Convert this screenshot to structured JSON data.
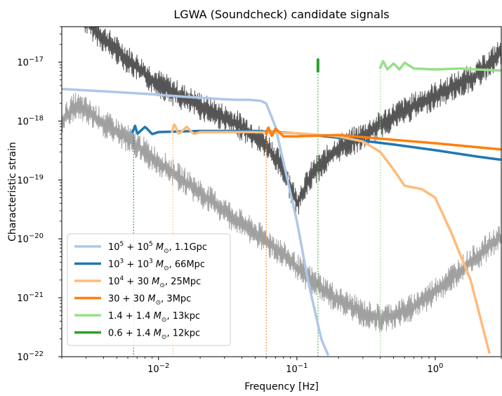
{
  "chart_data": {
    "type": "line",
    "title": "LGWA (Soundcheck) candidate signals",
    "xlabel": "Frequency [Hz]",
    "ylabel": "Characteristic strain",
    "xscale": "log",
    "yscale": "log",
    "xlim": [
      0.002,
      3.0
    ],
    "ylim": [
      1e-22,
      4e-17
    ],
    "grid": false,
    "legend_position": "lower-left",
    "x_ticks": [
      {
        "value": 0.01,
        "label": "10^-2"
      },
      {
        "value": 0.1,
        "label": "10^-1"
      },
      {
        "value": 1,
        "label": "10^0"
      }
    ],
    "y_ticks": [
      {
        "value": 1e-22,
        "label": "10^-22"
      },
      {
        "value": 1e-21,
        "label": "10^-21"
      },
      {
        "value": 1e-20,
        "label": "10^-20"
      },
      {
        "value": 1e-19,
        "label": "10^-19"
      },
      {
        "value": 1e-18,
        "label": "10^-18"
      },
      {
        "value": 1e-17,
        "label": "10^-17"
      }
    ],
    "noise_curves": [
      {
        "color": "#555555",
        "noisy": true,
        "points": [
          [
            0.0028,
            6e-17
          ],
          [
            0.004,
            2.5e-17
          ],
          [
            0.006,
            1.1e-17
          ],
          [
            0.009,
            5e-18
          ],
          [
            0.015,
            2.5e-18
          ],
          [
            0.025,
            1.4e-18
          ],
          [
            0.04,
            8e-19
          ],
          [
            0.06,
            4e-19
          ],
          [
            0.08,
            1.5e-19
          ],
          [
            0.1,
            4e-20
          ],
          [
            0.13,
            1.3e-19
          ],
          [
            0.2,
            3.5e-19
          ],
          [
            0.3,
            5.5e-19
          ],
          [
            0.5,
            1.2e-18
          ],
          [
            1,
            2.7e-18
          ],
          [
            2,
            6e-18
          ],
          [
            3,
            1.5e-17
          ]
        ]
      },
      {
        "color": "#a0a0a0",
        "noisy": true,
        "points": [
          [
            0.002,
            1e-18
          ],
          [
            0.0025,
            1.8e-18
          ],
          [
            0.003,
            1.5e-18
          ],
          [
            0.004,
            9e-19
          ],
          [
            0.006,
            5e-19
          ],
          [
            0.01,
            2e-19
          ],
          [
            0.02,
            6e-20
          ],
          [
            0.04,
            1.8e-20
          ],
          [
            0.07,
            7e-21
          ],
          [
            0.12,
            2.2e-21
          ],
          [
            0.2,
            9e-22
          ],
          [
            0.3,
            5.5e-22
          ],
          [
            0.4,
            4.5e-22
          ],
          [
            0.5,
            5e-22
          ],
          [
            0.7,
            7e-22
          ],
          [
            1,
            1.3e-21
          ],
          [
            2,
            5e-21
          ],
          [
            3,
            1.1e-20
          ]
        ]
      }
    ],
    "series": [
      {
        "name": "10^5 + 10^5 M_sun, 1.1Gpc",
        "color": "#aec7e8",
        "points": [
          [
            0.002,
            3.5e-18
          ],
          [
            0.004,
            3.2e-18
          ],
          [
            0.008,
            2.9e-18
          ],
          [
            0.015,
            2.6e-18
          ],
          [
            0.025,
            2.4e-18
          ],
          [
            0.035,
            2.3e-18
          ],
          [
            0.045,
            2.3e-18
          ],
          [
            0.055,
            2.2e-18
          ],
          [
            0.06,
            2e-18
          ],
          [
            0.07,
            8e-19
          ],
          [
            0.08,
            2e-19
          ],
          [
            0.1,
            2e-20
          ],
          [
            0.12,
            2e-21
          ],
          [
            0.15,
            2e-22
          ],
          [
            0.17,
            1e-22
          ]
        ]
      },
      {
        "name": "10^3 + 10^3 M_sun, 66Mpc",
        "color": "#1f77b4",
        "points": [
          [
            0.0065,
            6.5e-19
          ],
          [
            0.0068,
            8.5e-19
          ],
          [
            0.007,
            6e-19
          ],
          [
            0.008,
            8e-19
          ],
          [
            0.009,
            6e-19
          ],
          [
            0.01,
            6.5e-19
          ],
          [
            0.02,
            6.8e-19
          ],
          [
            0.05,
            6.8e-19
          ],
          [
            0.1,
            6.2e-19
          ],
          [
            0.2,
            5.2e-19
          ],
          [
            0.5,
            4e-19
          ],
          [
            1,
            3.2e-19
          ],
          [
            2,
            2.5e-19
          ],
          [
            3,
            2.2e-19
          ]
        ]
      },
      {
        "name": "10^4 + 30 M_sun, 25Mpc",
        "color": "#ffbb78",
        "points": [
          [
            0.0125,
            6.5e-19
          ],
          [
            0.013,
            9e-19
          ],
          [
            0.014,
            6e-19
          ],
          [
            0.016,
            8e-19
          ],
          [
            0.018,
            6e-19
          ],
          [
            0.02,
            6.5e-19
          ],
          [
            0.05,
            6.5e-19
          ],
          [
            0.1,
            6.2e-19
          ],
          [
            0.2,
            5.5e-19
          ],
          [
            0.3,
            4.5e-19
          ],
          [
            0.4,
            3e-19
          ],
          [
            0.5,
            1.5e-19
          ],
          [
            0.6,
            8e-20
          ],
          [
            0.8,
            7e-20
          ],
          [
            1,
            5e-20
          ],
          [
            1.3,
            1.3e-20
          ],
          [
            1.8,
            2e-21
          ],
          [
            2.5,
            1e-22
          ]
        ]
      },
      {
        "name": "30 + 30 M_sun, 3Mpc",
        "color": "#ff7f0e",
        "points": [
          [
            0.06,
            6e-19
          ],
          [
            0.062,
            8e-19
          ],
          [
            0.066,
            5.5e-19
          ],
          [
            0.07,
            7.5e-19
          ],
          [
            0.08,
            5.5e-19
          ],
          [
            0.1,
            5.5e-19
          ],
          [
            0.2,
            5.8e-19
          ],
          [
            0.5,
            4.8e-19
          ],
          [
            1,
            4.2e-19
          ],
          [
            2,
            3.6e-19
          ],
          [
            3,
            3.3e-19
          ]
        ]
      },
      {
        "name": "1.4 + 1.4 M_sun, 13kpc",
        "color": "#98df8a",
        "points": [
          [
            0.4,
            8e-18
          ],
          [
            0.42,
            1.05e-17
          ],
          [
            0.45,
            7.5e-18
          ],
          [
            0.5,
            9.5e-18
          ],
          [
            0.55,
            7.5e-18
          ],
          [
            0.6,
            9.8e-18
          ],
          [
            0.7,
            7.8e-18
          ],
          [
            1,
            7.5e-18
          ],
          [
            1.5,
            7.8e-18
          ],
          [
            2,
            7.5e-18
          ],
          [
            3,
            7.2e-18
          ]
        ]
      },
      {
        "name": "0.6 + 1.4 M_sun, 12kpc",
        "color": "#2ca02c",
        "points": [
          [
            0.142,
            7e-18
          ],
          [
            0.142,
            1.1e-17
          ]
        ]
      }
    ],
    "markers": [
      {
        "x": 0.0066,
        "color": "#1f77b4",
        "y_top": 6e-19
      },
      {
        "x": 0.0127,
        "color": "#ffbb78",
        "y_top": 6e-19
      },
      {
        "x": 0.06,
        "color": "#ff7f0e",
        "y_top": 6e-19
      },
      {
        "x": 0.142,
        "color": "#2ca02c",
        "y_top": 7e-18
      },
      {
        "x": 0.4,
        "color": "#98df8a",
        "y_top": 8e-18
      }
    ]
  },
  "legend": {
    "entries": [
      {
        "mass_a": "10",
        "exp_a": "5",
        "op": " + ",
        "mass_b": "10",
        "exp_b": "5",
        "unit": " M",
        "sun": "⊙",
        "dist": ", 1.1Gpc",
        "color": "#aec7e8"
      },
      {
        "mass_a": "10",
        "exp_a": "3",
        "op": " + ",
        "mass_b": "10",
        "exp_b": "3",
        "unit": " M",
        "sun": "⊙",
        "dist": ", 66Mpc",
        "color": "#1f77b4"
      },
      {
        "mass_a": "10",
        "exp_a": "4",
        "op": " + ",
        "mass_b": "30",
        "exp_b": "",
        "unit": " M",
        "sun": "⊙",
        "dist": ", 25Mpc",
        "color": "#ffbb78"
      },
      {
        "mass_a": "30",
        "exp_a": "",
        "op": " + ",
        "mass_b": "30",
        "exp_b": "",
        "unit": " M",
        "sun": "⊙",
        "dist": ", 3Mpc",
        "color": "#ff7f0e"
      },
      {
        "mass_a": "1.4",
        "exp_a": "",
        "op": " + ",
        "mass_b": "1.4",
        "exp_b": "",
        "unit": " M",
        "sun": "⊙",
        "dist": ", 13kpc",
        "color": "#98df8a"
      },
      {
        "mass_a": "0.6",
        "exp_a": "",
        "op": " + ",
        "mass_b": "1.4",
        "exp_b": "",
        "unit": " M",
        "sun": "⊙",
        "dist": ", 12kpc",
        "color": "#2ca02c"
      }
    ]
  }
}
